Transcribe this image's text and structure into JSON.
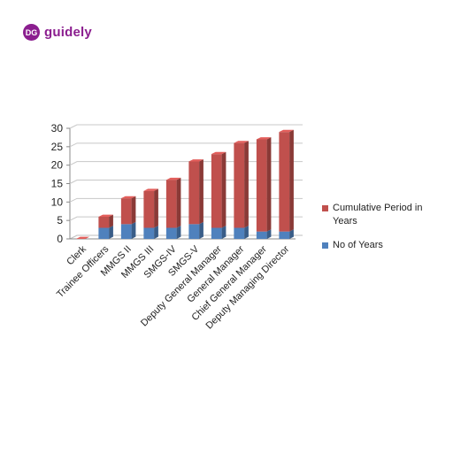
{
  "brand": {
    "name": "guidely",
    "logo_text": "DG",
    "color": "#8b1e8f"
  },
  "chart_data": {
    "type": "bar",
    "stacked": true,
    "title": "",
    "xlabel": "",
    "ylabel": "",
    "ylim": [
      0,
      30
    ],
    "yticks": [
      0,
      5,
      10,
      15,
      20,
      25,
      30
    ],
    "grid": true,
    "legend_position": "right",
    "categories": [
      "Clerk",
      "Trainee Officers",
      "MMGS II",
      "MMGS III",
      "SMGS-IV",
      "SMGS-V",
      "Deputy General Manager",
      "General Manager",
      "Chief General Manager",
      "Deputy Managing Director"
    ],
    "series": [
      {
        "name": "No of Years",
        "color": "#4f81bd",
        "values": [
          0,
          3,
          4,
          3,
          3,
          4,
          3,
          3,
          2,
          2
        ]
      },
      {
        "name": "Cumulative Period in Years",
        "color": "#c0504d",
        "values": [
          0,
          3,
          7,
          10,
          13,
          17,
          20,
          23,
          25,
          27
        ]
      }
    ]
  }
}
